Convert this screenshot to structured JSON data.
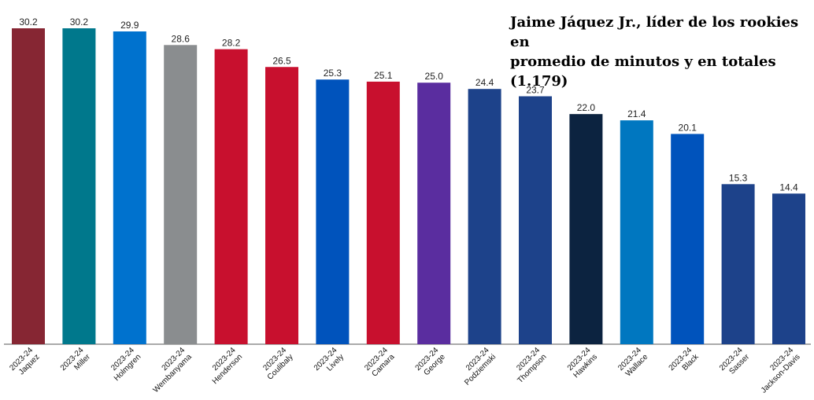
{
  "chart_data": {
    "type": "bar",
    "title_lines": [
      "Jaime Jáquez Jr., líder de los rookies en",
      "promedio de minutos y en totales (1.179)"
    ],
    "xlabel": "",
    "ylabel": "",
    "ylim": [
      0,
      30.2
    ],
    "grid": false,
    "legend": "none",
    "categories": [
      {
        "season": "2023-24",
        "player": "Jaquez"
      },
      {
        "season": "2023-24",
        "player": "Miller"
      },
      {
        "season": "2023-24",
        "player": "Holmgren"
      },
      {
        "season": "2023-24",
        "player": "Wembanyama"
      },
      {
        "season": "2023-24",
        "player": "Henderson"
      },
      {
        "season": "2023-24",
        "player": "Coulibaly"
      },
      {
        "season": "2023-24",
        "player": "Lively"
      },
      {
        "season": "2023-24",
        "player": "Camara"
      },
      {
        "season": "2023-24",
        "player": "George"
      },
      {
        "season": "2023-24",
        "player": "Podziemski"
      },
      {
        "season": "2023-24",
        "player": "Thompson"
      },
      {
        "season": "2023-24",
        "player": "Hawkins"
      },
      {
        "season": "2023-24",
        "player": "Wallace"
      },
      {
        "season": "2023-24",
        "player": "Black"
      },
      {
        "season": "2023-24",
        "player": "Sasser"
      },
      {
        "season": "2023-24",
        "player": "Jackson-Davis"
      }
    ],
    "values": [
      30.2,
      30.2,
      29.9,
      28.6,
      28.2,
      26.5,
      25.3,
      25.1,
      25.0,
      24.4,
      23.7,
      22.0,
      21.4,
      20.1,
      15.3,
      14.4
    ],
    "value_labels": [
      "30.2",
      "30.2",
      "29.9",
      "28.6",
      "28.2",
      "26.5",
      "25.3",
      "25.1",
      "25.0",
      "24.4",
      "23.7",
      "22.0",
      "21.4",
      "20.1",
      "15.3",
      "14.4"
    ],
    "colors": [
      "#862633",
      "#00788C",
      "#0072CE",
      "#8A8D8F",
      "#C8102E",
      "#C8102E",
      "#0053BC",
      "#C8102E",
      "#5A2D9F",
      "#1D428A",
      "#1D428A",
      "#0C2340",
      "#0077C0",
      "#0053BC",
      "#1D428A",
      "#1D428A"
    ]
  }
}
